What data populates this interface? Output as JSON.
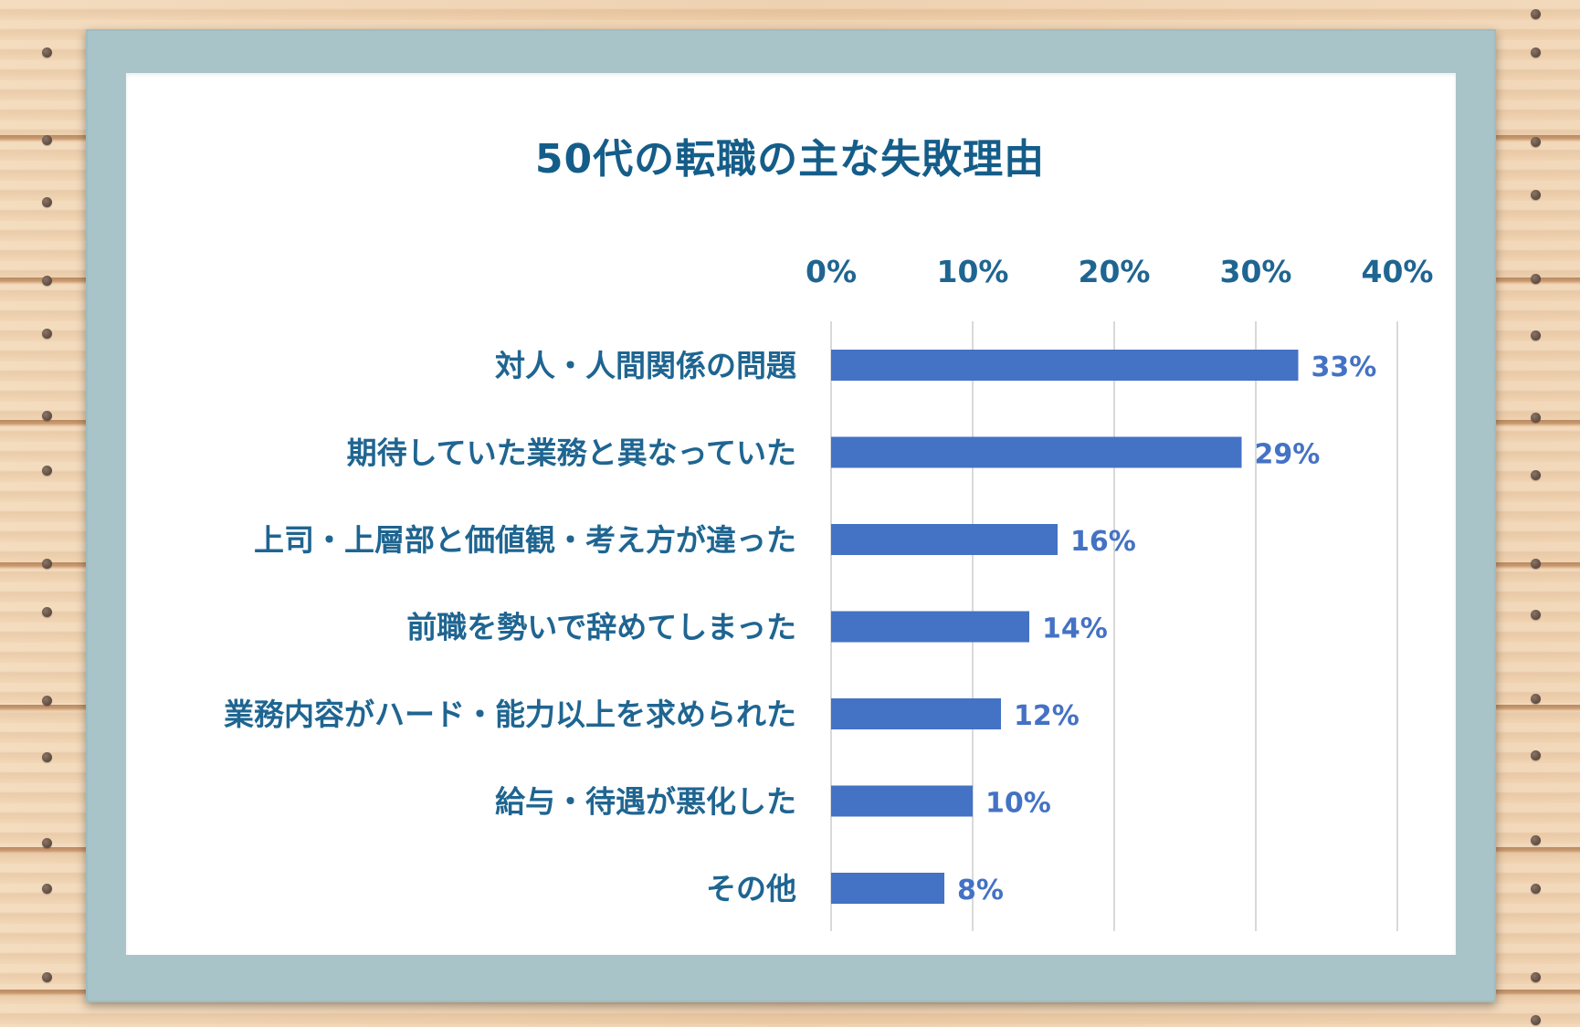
{
  "chart_data": {
    "type": "bar",
    "orientation": "horizontal",
    "title": "50代の転職の主な失敗理由",
    "categories": [
      "対人・人間関係の問題",
      "期待していた業務と異なっていた",
      "上司・上層部と価値観・考え方が違った",
      "前職を勢いで辞めてしまった",
      "業務内容がハード・能力以上を求められた",
      "給与・待遇が悪化した",
      "その他"
    ],
    "values": [
      33,
      29,
      16,
      14,
      12,
      10,
      8
    ],
    "value_labels": [
      "33%",
      "29%",
      "16%",
      "14%",
      "12%",
      "10%",
      "8%"
    ],
    "xticks": [
      0,
      10,
      20,
      30,
      40
    ],
    "xtick_labels": [
      "0%",
      "10%",
      "20%",
      "30%",
      "40%"
    ],
    "xlim": [
      0,
      40
    ],
    "xaxis_position": "top",
    "grid": true,
    "bar_color": "#4472c4",
    "label_color": "#1f6591",
    "xlabel": "",
    "ylabel": ""
  },
  "colors": {
    "frame": "#a8c4c8",
    "board": "#ffffff",
    "background": "#efd2b0"
  }
}
